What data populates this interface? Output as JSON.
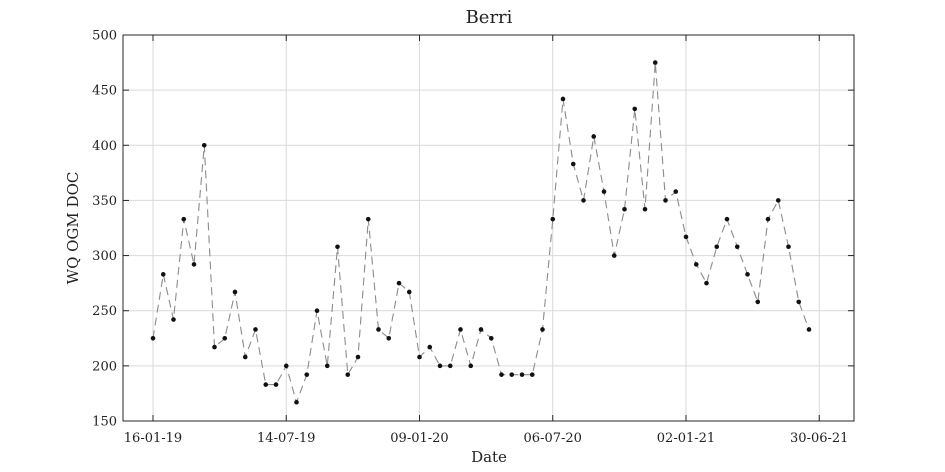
{
  "chart_data": {
    "type": "line",
    "title": "Berri",
    "xlabel": "Date",
    "ylabel": "WQ OGM DOC",
    "ylim": [
      150,
      500
    ],
    "yticks": [
      150,
      200,
      250,
      300,
      350,
      400,
      450,
      500
    ],
    "xticks": [
      {
        "index": 0,
        "label": "16-01-19"
      },
      {
        "index": 13,
        "label": "14-07-19"
      },
      {
        "index": 26,
        "label": "09-01-20"
      },
      {
        "index": 39,
        "label": "06-07-20"
      },
      {
        "index": 52,
        "label": "02-01-21"
      },
      {
        "index": 65,
        "label": "30-06-21"
      }
    ],
    "grid": true,
    "series": [
      {
        "name": "WQ OGM DOC",
        "style": "dashed line with dot markers",
        "color": "#8c8c8c",
        "values": [
          225,
          283,
          242,
          333,
          292,
          400,
          217,
          225,
          267,
          208,
          233,
          183,
          183,
          200,
          167,
          192,
          250,
          200,
          308,
          192,
          208,
          333,
          233,
          225,
          275,
          267,
          208,
          217,
          200,
          200,
          233,
          200,
          233,
          225,
          192,
          192,
          192,
          192,
          233,
          333,
          442,
          383,
          350,
          408,
          358,
          300,
          342,
          433,
          342,
          475,
          350,
          358,
          317,
          292,
          275,
          308,
          333,
          308,
          283,
          258,
          333,
          350,
          308,
          258,
          233
        ]
      }
    ]
  }
}
